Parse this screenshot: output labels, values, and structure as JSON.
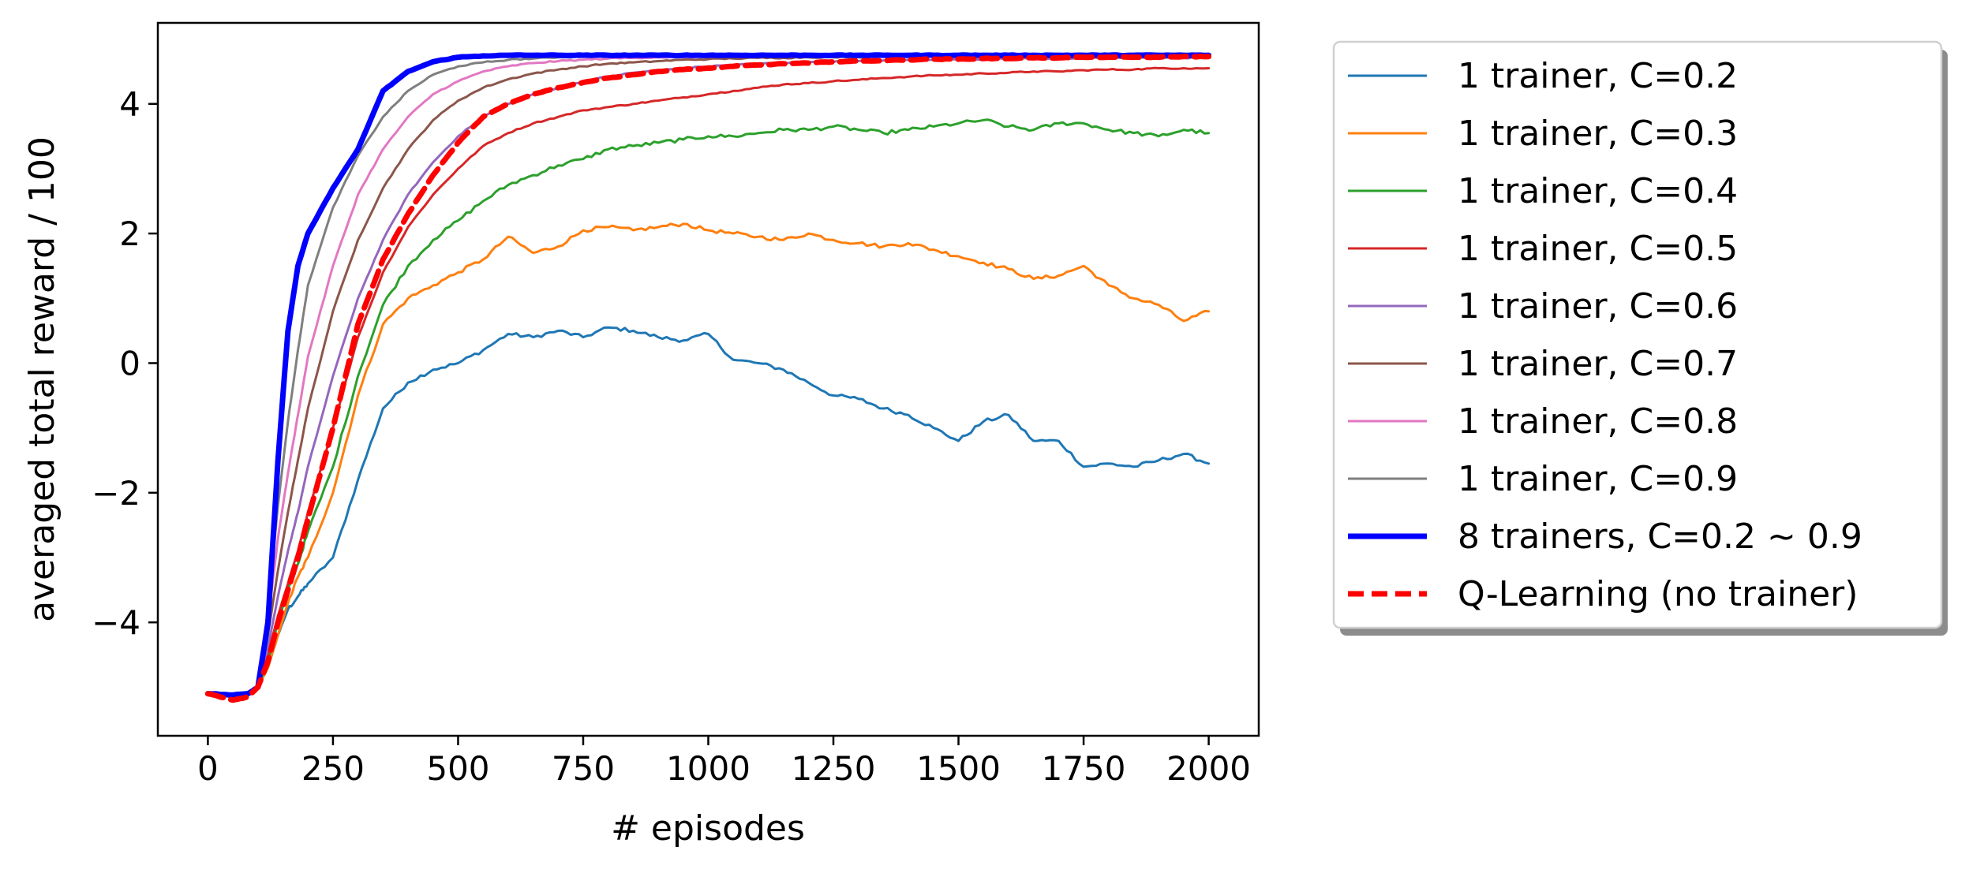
{
  "chart_data": {
    "type": "line",
    "title": "",
    "xlabel": "# episodes",
    "ylabel": "averaged total reward / 100",
    "xlim": [
      -100,
      2100
    ],
    "ylim": [
      -5.75,
      5.25
    ],
    "xticks": [
      0,
      250,
      500,
      750,
      1000,
      1250,
      1500,
      1750,
      2000
    ],
    "xtick_labels": [
      "0",
      "250",
      "500",
      "750",
      "1000",
      "1250",
      "1500",
      "1750",
      "2000"
    ],
    "yticks": [
      -4,
      -2,
      0,
      2,
      4
    ],
    "ytick_labels": [
      "−4",
      "−2",
      "0",
      "2",
      "4"
    ],
    "grid": false,
    "legend_position": "outside-right",
    "series": [
      {
        "name": "1 trainer, C=0.2",
        "color": "#1f77b4",
        "style": "solid",
        "weight": "thin",
        "x": [
          0,
          50,
          80,
          100,
          120,
          140,
          160,
          180,
          200,
          250,
          300,
          350,
          400,
          450,
          500,
          550,
          600,
          650,
          700,
          750,
          800,
          850,
          900,
          950,
          1000,
          1050,
          1100,
          1150,
          1200,
          1250,
          1300,
          1350,
          1400,
          1450,
          1500,
          1550,
          1600,
          1650,
          1700,
          1750,
          1800,
          1850,
          1900,
          1950,
          2000
        ],
        "y": [
          -5.1,
          -5.15,
          -5.1,
          -5.0,
          -4.7,
          -4.2,
          -3.8,
          -3.6,
          -3.4,
          -3.0,
          -1.8,
          -0.7,
          -0.3,
          -0.1,
          0.0,
          0.2,
          0.45,
          0.4,
          0.5,
          0.4,
          0.55,
          0.5,
          0.4,
          0.35,
          0.45,
          0.05,
          0.0,
          -0.1,
          -0.3,
          -0.5,
          -0.55,
          -0.7,
          -0.8,
          -1.0,
          -1.2,
          -0.9,
          -0.8,
          -1.2,
          -1.2,
          -1.6,
          -1.55,
          -1.6,
          -1.5,
          -1.4,
          -1.55
        ]
      },
      {
        "name": "1 trainer, C=0.3",
        "color": "#ff7f0e",
        "style": "solid",
        "weight": "thin",
        "x": [
          0,
          50,
          80,
          100,
          120,
          140,
          160,
          180,
          200,
          250,
          300,
          350,
          400,
          450,
          500,
          550,
          600,
          650,
          700,
          750,
          800,
          850,
          900,
          950,
          1000,
          1050,
          1100,
          1150,
          1200,
          1250,
          1300,
          1350,
          1400,
          1450,
          1500,
          1550,
          1600,
          1650,
          1700,
          1750,
          1800,
          1850,
          1900,
          1950,
          2000
        ],
        "y": [
          -5.1,
          -5.15,
          -5.1,
          -5.0,
          -4.7,
          -4.2,
          -3.7,
          -3.3,
          -3.0,
          -2.0,
          -0.5,
          0.6,
          1.0,
          1.2,
          1.4,
          1.6,
          1.95,
          1.7,
          1.8,
          2.05,
          2.1,
          2.05,
          2.1,
          2.15,
          2.05,
          2.0,
          1.95,
          1.9,
          2.0,
          1.9,
          1.85,
          1.8,
          1.85,
          1.75,
          1.65,
          1.55,
          1.45,
          1.3,
          1.35,
          1.5,
          1.2,
          1.0,
          0.9,
          0.65,
          0.8
        ]
      },
      {
        "name": "1 trainer, C=0.4",
        "color": "#2ca02c",
        "style": "solid",
        "weight": "thin",
        "x": [
          0,
          50,
          80,
          100,
          120,
          140,
          160,
          180,
          200,
          250,
          300,
          350,
          400,
          450,
          500,
          550,
          600,
          650,
          700,
          750,
          800,
          850,
          900,
          950,
          1000,
          1050,
          1100,
          1150,
          1200,
          1250,
          1300,
          1350,
          1400,
          1450,
          1500,
          1550,
          1600,
          1650,
          1700,
          1750,
          1800,
          1850,
          1900,
          1950,
          2000
        ],
        "y": [
          -5.1,
          -5.15,
          -5.1,
          -5.0,
          -4.6,
          -4.0,
          -3.5,
          -3.1,
          -2.6,
          -1.6,
          -0.2,
          0.9,
          1.5,
          1.9,
          2.2,
          2.5,
          2.75,
          2.9,
          3.05,
          3.15,
          3.3,
          3.35,
          3.4,
          3.45,
          3.5,
          3.5,
          3.55,
          3.6,
          3.6,
          3.65,
          3.6,
          3.55,
          3.6,
          3.65,
          3.7,
          3.75,
          3.65,
          3.6,
          3.7,
          3.7,
          3.6,
          3.55,
          3.5,
          3.6,
          3.55
        ]
      },
      {
        "name": "1 trainer, C=0.5",
        "color": "#d62728",
        "style": "solid",
        "weight": "thin",
        "x": [
          0,
          50,
          80,
          100,
          120,
          140,
          160,
          180,
          200,
          250,
          300,
          350,
          400,
          450,
          500,
          550,
          600,
          650,
          700,
          750,
          800,
          850,
          900,
          950,
          1000,
          1050,
          1100,
          1150,
          1200,
          1250,
          1300,
          1350,
          1400,
          1450,
          1500,
          1550,
          1600,
          1650,
          1700,
          1750,
          1800,
          1850,
          1900,
          1950,
          2000
        ],
        "y": [
          -5.1,
          -5.15,
          -5.1,
          -5.0,
          -4.5,
          -3.9,
          -3.4,
          -2.9,
          -2.3,
          -1.0,
          0.4,
          1.4,
          2.1,
          2.6,
          3.0,
          3.35,
          3.55,
          3.7,
          3.8,
          3.9,
          3.95,
          4.0,
          4.05,
          4.1,
          4.15,
          4.2,
          4.25,
          4.3,
          4.32,
          4.35,
          4.37,
          4.4,
          4.42,
          4.44,
          4.45,
          4.47,
          4.48,
          4.5,
          4.5,
          4.52,
          4.53,
          4.53,
          4.55,
          4.55,
          4.55
        ]
      },
      {
        "name": "1 trainer, C=0.6",
        "color": "#9467bd",
        "style": "solid",
        "weight": "thin",
        "x": [
          0,
          50,
          80,
          100,
          120,
          140,
          160,
          180,
          200,
          250,
          300,
          350,
          400,
          450,
          500,
          550,
          600,
          650,
          700,
          750,
          800,
          850,
          900,
          950,
          1000,
          1050,
          1100,
          1150,
          1200,
          1250,
          1300,
          1350,
          1400,
          1450,
          1500,
          1550,
          1600,
          1650,
          1700,
          1750,
          1800,
          1850,
          1900,
          1950,
          2000
        ],
        "y": [
          -5.1,
          -5.15,
          -5.1,
          -5.0,
          -4.4,
          -3.6,
          -2.9,
          -2.3,
          -1.6,
          -0.2,
          1.0,
          1.9,
          2.6,
          3.1,
          3.5,
          3.8,
          4.0,
          4.15,
          4.25,
          4.35,
          4.42,
          4.48,
          4.52,
          4.55,
          4.58,
          4.6,
          4.62,
          4.63,
          4.64,
          4.65,
          4.66,
          4.67,
          4.68,
          4.68,
          4.69,
          4.69,
          4.7,
          4.7,
          4.7,
          4.7,
          4.71,
          4.71,
          4.71,
          4.71,
          4.72
        ]
      },
      {
        "name": "1 trainer, C=0.7",
        "color": "#8c564b",
        "style": "solid",
        "weight": "thin",
        "x": [
          0,
          50,
          80,
          100,
          120,
          140,
          160,
          180,
          200,
          250,
          300,
          350,
          400,
          450,
          500,
          550,
          600,
          650,
          700,
          750,
          800,
          850,
          900,
          950,
          1000,
          1050,
          1100,
          1150,
          1200,
          1250,
          1300,
          1350,
          1400,
          1450,
          1500,
          1550,
          1600,
          1650,
          1700,
          1750,
          1800,
          1850,
          1900,
          1950,
          2000
        ],
        "y": [
          -5.1,
          -5.15,
          -5.1,
          -5.0,
          -4.2,
          -3.2,
          -2.3,
          -1.5,
          -0.7,
          0.8,
          1.9,
          2.7,
          3.3,
          3.75,
          4.05,
          4.25,
          4.38,
          4.47,
          4.53,
          4.58,
          4.62,
          4.64,
          4.66,
          4.68,
          4.69,
          4.7,
          4.71,
          4.71,
          4.72,
          4.72,
          4.72,
          4.73,
          4.73,
          4.73,
          4.73,
          4.73,
          4.73,
          4.73,
          4.73,
          4.73,
          4.73,
          4.73,
          4.73,
          4.73,
          4.73
        ]
      },
      {
        "name": "1 trainer, C=0.8",
        "color": "#e377c2",
        "style": "solid",
        "weight": "thin",
        "x": [
          0,
          50,
          80,
          100,
          120,
          140,
          160,
          180,
          200,
          250,
          300,
          350,
          400,
          450,
          500,
          550,
          600,
          650,
          700,
          750,
          800,
          850,
          900,
          950,
          1000,
          1050,
          1100,
          1150,
          1200,
          1250,
          1300,
          1350,
          1400,
          1450,
          1500,
          1550,
          1600,
          1650,
          1700,
          1750,
          1800,
          1850,
          1900,
          1950,
          2000
        ],
        "y": [
          -5.1,
          -5.15,
          -5.1,
          -5.0,
          -4.0,
          -2.7,
          -1.7,
          -0.8,
          0.1,
          1.5,
          2.6,
          3.3,
          3.8,
          4.15,
          4.35,
          4.5,
          4.58,
          4.63,
          4.66,
          4.68,
          4.7,
          4.71,
          4.72,
          4.72,
          4.73,
          4.73,
          4.73,
          4.73,
          4.73,
          4.74,
          4.74,
          4.74,
          4.74,
          4.74,
          4.74,
          4.74,
          4.74,
          4.74,
          4.74,
          4.74,
          4.74,
          4.74,
          4.74,
          4.74,
          4.74
        ]
      },
      {
        "name": "1 trainer, C=0.9",
        "color": "#7f7f7f",
        "style": "solid",
        "weight": "thin",
        "x": [
          0,
          50,
          80,
          100,
          120,
          140,
          160,
          180,
          200,
          250,
          300,
          350,
          400,
          450,
          500,
          550,
          600,
          650,
          700,
          750,
          800,
          850,
          900,
          950,
          1000,
          1050,
          1100,
          1150,
          1200,
          1250,
          1300,
          1350,
          1400,
          1450,
          1500,
          1550,
          1600,
          1650,
          1700,
          1750,
          1800,
          1850,
          1900,
          1950,
          2000
        ],
        "y": [
          -5.1,
          -5.15,
          -5.1,
          -5.0,
          -3.8,
          -2.2,
          -0.9,
          0.2,
          1.2,
          2.4,
          3.2,
          3.8,
          4.2,
          4.45,
          4.58,
          4.64,
          4.68,
          4.7,
          4.72,
          4.73,
          4.73,
          4.74,
          4.74,
          4.74,
          4.74,
          4.74,
          4.74,
          4.74,
          4.74,
          4.74,
          4.74,
          4.74,
          4.74,
          4.74,
          4.74,
          4.74,
          4.74,
          4.74,
          4.74,
          4.74,
          4.74,
          4.74,
          4.74,
          4.74,
          4.74
        ]
      },
      {
        "name": "8 trainers, C=0.2 ~ 0.9",
        "color": "#0000ff",
        "style": "solid",
        "weight": "thick",
        "x": [
          0,
          50,
          80,
          100,
          120,
          140,
          160,
          180,
          200,
          250,
          300,
          350,
          400,
          450,
          500,
          550,
          600,
          650,
          700,
          750,
          800,
          850,
          900,
          950,
          1000,
          1050,
          1100,
          1150,
          1200,
          1250,
          1300,
          1350,
          1400,
          1450,
          1500,
          1550,
          1600,
          1650,
          1700,
          1750,
          1800,
          1850,
          1900,
          1950,
          2000
        ],
        "y": [
          -5.1,
          -5.12,
          -5.1,
          -5.0,
          -4.0,
          -1.5,
          0.5,
          1.5,
          2.0,
          2.7,
          3.3,
          4.2,
          4.5,
          4.65,
          4.72,
          4.74,
          4.75,
          4.75,
          4.75,
          4.75,
          4.75,
          4.75,
          4.75,
          4.75,
          4.75,
          4.75,
          4.75,
          4.75,
          4.75,
          4.75,
          4.75,
          4.75,
          4.75,
          4.75,
          4.75,
          4.75,
          4.75,
          4.75,
          4.75,
          4.75,
          4.75,
          4.75,
          4.75,
          4.75,
          4.75
        ]
      },
      {
        "name": "Q-Learning (no trainer)",
        "color": "#ff0000",
        "style": "dashed",
        "weight": "thick",
        "x": [
          0,
          50,
          80,
          100,
          120,
          140,
          160,
          180,
          200,
          250,
          300,
          350,
          400,
          450,
          500,
          550,
          600,
          650,
          700,
          750,
          800,
          850,
          900,
          950,
          1000,
          1050,
          1100,
          1150,
          1200,
          1250,
          1300,
          1350,
          1400,
          1450,
          1500,
          1550,
          1600,
          1650,
          1700,
          1750,
          1800,
          1850,
          1900,
          1950,
          2000
        ],
        "y": [
          -5.1,
          -5.2,
          -5.15,
          -5.0,
          -4.6,
          -4.0,
          -3.5,
          -3.0,
          -2.4,
          -1.0,
          0.6,
          1.6,
          2.3,
          2.9,
          3.4,
          3.8,
          4.0,
          4.15,
          4.25,
          4.33,
          4.4,
          4.45,
          4.5,
          4.53,
          4.55,
          4.58,
          4.6,
          4.62,
          4.63,
          4.65,
          4.66,
          4.67,
          4.68,
          4.69,
          4.69,
          4.7,
          4.7,
          4.71,
          4.71,
          4.72,
          4.72,
          4.72,
          4.72,
          4.73,
          4.73
        ]
      }
    ]
  }
}
